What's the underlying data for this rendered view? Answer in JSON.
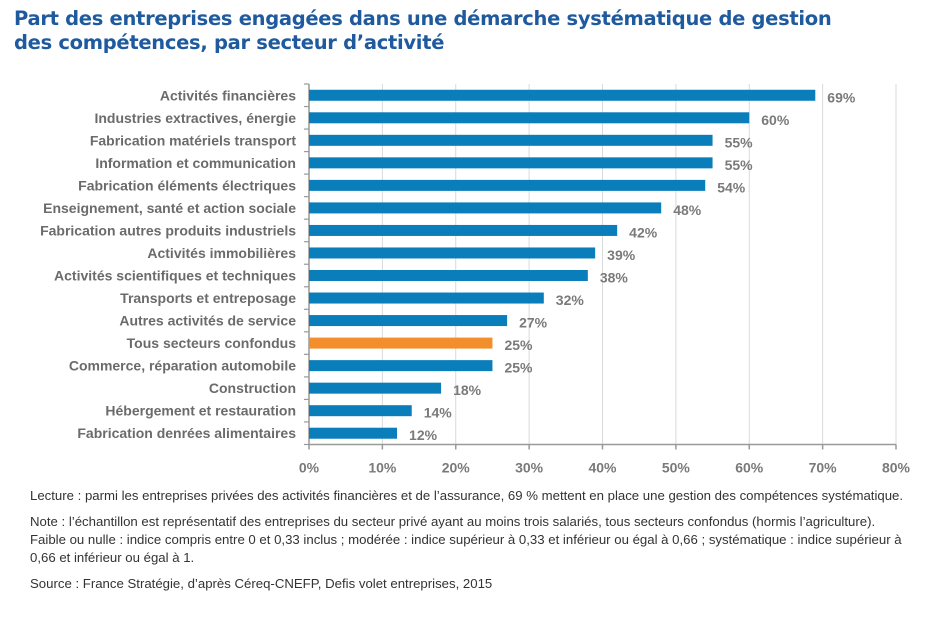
{
  "title_line1": "Part des entreprises engagées dans une démarche systématique de gestion",
  "title_line2": "des compétences, par secteur d’activité",
  "chart_data": {
    "type": "bar",
    "orientation": "horizontal",
    "categories": [
      "Activités financières",
      "Industries extractives, énergie",
      "Fabrication matériels transport",
      "Information et communication",
      "Fabrication éléments électriques",
      "Enseignement, santé et action sociale",
      "Fabrication autres produits industriels",
      "Activités immobilières",
      "Activités scientifiques et techniques",
      "Transports et entreposage",
      "Autres activités de service",
      "Tous secteurs confondus",
      "Commerce, réparation automobile",
      "Construction",
      "Hébergement et restauration",
      "Fabrication denrées alimentaires"
    ],
    "values": [
      69,
      60,
      55,
      55,
      54,
      48,
      42,
      39,
      38,
      32,
      27,
      25,
      25,
      18,
      14,
      12
    ],
    "value_labels": [
      "69%",
      "60%",
      "55%",
      "55%",
      "54%",
      "48%",
      "42%",
      "39%",
      "38%",
      "32%",
      "27%",
      "25%",
      "25%",
      "18%",
      "14%",
      "12%"
    ],
    "highlight_category": "Tous secteurs confondus",
    "xlim": [
      0,
      80
    ],
    "xticks": [
      "0%",
      "10%",
      "20%",
      "30%",
      "40%",
      "50%",
      "60%",
      "70%",
      "80%"
    ],
    "grid": true,
    "colors": {
      "bar": "#0a7dbb",
      "highlight": "#f28f2c",
      "grid": "#d9d9d9"
    }
  },
  "notes": {
    "lecture": "Lecture : parmi les entreprises privées des activités financières et de l’assurance, 69 % mettent en place une gestion des compétences systématique.",
    "note": "Note : l’échantillon est représentatif des entreprises du secteur privé ayant au moins trois salariés, tous secteurs confondus (hormis l’agriculture). Faible ou nulle : indice compris entre 0 et 0,33 inclus ; modérée : indice supérieur à 0,33 et inférieur ou égal à 0,66 ; systématique : indice supérieur à 0,66 et inférieur ou égal à 1.",
    "source": "Source : France Stratégie, d’après Céreq-CNEFP, Defis volet entreprises, 2015"
  }
}
